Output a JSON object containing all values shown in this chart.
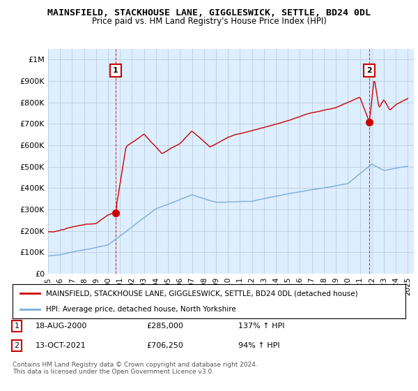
{
  "title": "MAINSFIELD, STACKHOUSE LANE, GIGGLESWICK, SETTLE, BD24 0DL",
  "subtitle": "Price paid vs. HM Land Registry's House Price Index (HPI)",
  "ylim": [
    0,
    1050000
  ],
  "yticks": [
    0,
    100000,
    200000,
    300000,
    400000,
    500000,
    600000,
    700000,
    800000,
    900000,
    1000000
  ],
  "ytick_labels": [
    "£0",
    "£100K",
    "£200K",
    "£300K",
    "£400K",
    "£500K",
    "£600K",
    "£700K",
    "£800K",
    "£900K",
    "£1M"
  ],
  "xlim_start": 1995.3,
  "xlim_end": 2025.5,
  "xticks": [
    1995,
    1996,
    1997,
    1998,
    1999,
    2000,
    2001,
    2002,
    2003,
    2004,
    2005,
    2006,
    2007,
    2008,
    2009,
    2010,
    2011,
    2012,
    2013,
    2014,
    2015,
    2016,
    2017,
    2018,
    2019,
    2020,
    2021,
    2022,
    2023,
    2024,
    2025
  ],
  "sale1_x": 2000.63,
  "sale1_y": 285000,
  "sale1_label": "1",
  "sale2_x": 2021.79,
  "sale2_y": 706250,
  "sale2_label": "2",
  "legend_line1": "MAINSFIELD, STACKHOUSE LANE, GIGGLESWICK, SETTLE, BD24 0DL (detached house)",
  "legend_line2": "HPI: Average price, detached house, North Yorkshire",
  "table_row1_num": "1",
  "table_row1_date": "18-AUG-2000",
  "table_row1_price": "£285,000",
  "table_row1_hpi": "137% ↑ HPI",
  "table_row2_num": "2",
  "table_row2_date": "13-OCT-2021",
  "table_row2_price": "£706,250",
  "table_row2_hpi": "94% ↑ HPI",
  "footer": "Contains HM Land Registry data © Crown copyright and database right 2024.\nThis data is licensed under the Open Government Licence v3.0.",
  "sale_color": "#cc0000",
  "hpi_color": "#7aaddb",
  "chart_bg": "#ddeeff",
  "bg_color": "#ffffff",
  "grid_color": "#bbccdd"
}
